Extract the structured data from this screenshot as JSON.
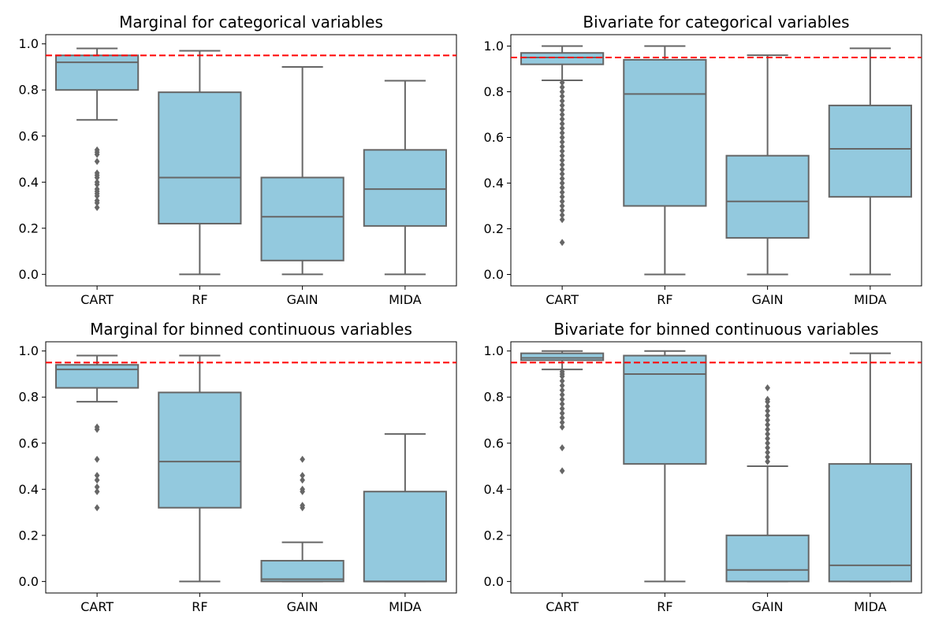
{
  "colors": {
    "box_fill": "#93c9de",
    "box_edge": "#666666",
    "reference_line": "#ff0000",
    "background": "#ffffff"
  },
  "chart_data": [
    {
      "type": "box",
      "title": "Marginal for categorical variables",
      "xlabel": "",
      "ylabel": "",
      "categories": [
        "CART",
        "RF",
        "GAIN",
        "MIDA"
      ],
      "ylim": [
        -0.05,
        1.04
      ],
      "yticks": [
        "0.0",
        "0.2",
        "0.4",
        "0.6",
        "0.8",
        "1.0"
      ],
      "reference_line": 0.95,
      "grid": false,
      "boxes": [
        {
          "q1": 0.8,
          "median": 0.92,
          "q3": 0.95,
          "whisker_low": 0.67,
          "whisker_high": 0.98,
          "outliers": [
            0.29,
            0.31,
            0.32,
            0.34,
            0.35,
            0.36,
            0.37,
            0.39,
            0.4,
            0.42,
            0.43,
            0.44,
            0.49,
            0.52,
            0.53,
            0.54
          ]
        },
        {
          "q1": 0.22,
          "median": 0.42,
          "q3": 0.79,
          "whisker_low": 0.0,
          "whisker_high": 0.97,
          "outliers": []
        },
        {
          "q1": 0.06,
          "median": 0.25,
          "q3": 0.42,
          "whisker_low": 0.0,
          "whisker_high": 0.9,
          "outliers": []
        },
        {
          "q1": 0.21,
          "median": 0.37,
          "q3": 0.54,
          "whisker_low": 0.0,
          "whisker_high": 0.84,
          "outliers": []
        }
      ]
    },
    {
      "type": "box",
      "title": "Bivariate for categorical variables",
      "xlabel": "",
      "ylabel": "",
      "categories": [
        "CART",
        "RF",
        "GAIN",
        "MIDA"
      ],
      "ylim": [
        -0.05,
        1.05
      ],
      "yticks": [
        "0.0",
        "0.2",
        "0.4",
        "0.6",
        "0.8",
        "1.0"
      ],
      "reference_line": 0.95,
      "grid": false,
      "boxes": [
        {
          "q1": 0.92,
          "median": 0.95,
          "q3": 0.97,
          "whisker_low": 0.85,
          "whisker_high": 1.0,
          "outliers": [
            0.14,
            0.24,
            0.26,
            0.28,
            0.3,
            0.32,
            0.34,
            0.36,
            0.38,
            0.4,
            0.42,
            0.44,
            0.46,
            0.48,
            0.5,
            0.52,
            0.54,
            0.56,
            0.58,
            0.6,
            0.62,
            0.64,
            0.66,
            0.68,
            0.7,
            0.72,
            0.74,
            0.76,
            0.78,
            0.8,
            0.82,
            0.84
          ]
        },
        {
          "q1": 0.3,
          "median": 0.79,
          "q3": 0.94,
          "whisker_low": 0.0,
          "whisker_high": 1.0,
          "outliers": []
        },
        {
          "q1": 0.16,
          "median": 0.32,
          "q3": 0.52,
          "whisker_low": 0.0,
          "whisker_high": 0.96,
          "outliers": []
        },
        {
          "q1": 0.34,
          "median": 0.55,
          "q3": 0.74,
          "whisker_low": 0.0,
          "whisker_high": 0.99,
          "outliers": []
        }
      ]
    },
    {
      "type": "box",
      "title": "Marginal for binned continuous variables",
      "xlabel": "",
      "ylabel": "",
      "categories": [
        "CART",
        "RF",
        "GAIN",
        "MIDA"
      ],
      "ylim": [
        -0.05,
        1.04
      ],
      "yticks": [
        "0.0",
        "0.2",
        "0.4",
        "0.6",
        "0.8",
        "1.0"
      ],
      "reference_line": 0.95,
      "grid": false,
      "boxes": [
        {
          "q1": 0.84,
          "median": 0.92,
          "q3": 0.94,
          "whisker_low": 0.78,
          "whisker_high": 0.98,
          "outliers": [
            0.32,
            0.39,
            0.41,
            0.44,
            0.46,
            0.53,
            0.66,
            0.67
          ]
        },
        {
          "q1": 0.32,
          "median": 0.52,
          "q3": 0.82,
          "whisker_low": 0.0,
          "whisker_high": 0.98,
          "outliers": []
        },
        {
          "q1": 0.0,
          "median": 0.01,
          "q3": 0.09,
          "whisker_low": 0.0,
          "whisker_high": 0.17,
          "outliers": [
            0.32,
            0.33,
            0.39,
            0.4,
            0.44,
            0.46,
            0.53
          ]
        },
        {
          "q1": 0.0,
          "median": 0.0,
          "q3": 0.39,
          "whisker_low": 0.0,
          "whisker_high": 0.64,
          "outliers": []
        }
      ]
    },
    {
      "type": "box",
      "title": "Bivariate for binned continuous variables",
      "xlabel": "",
      "ylabel": "",
      "categories": [
        "CART",
        "RF",
        "GAIN",
        "MIDA"
      ],
      "ylim": [
        -0.05,
        1.04
      ],
      "yticks": [
        "0.0",
        "0.2",
        "0.4",
        "0.6",
        "0.8",
        "1.0"
      ],
      "reference_line": 0.95,
      "grid": false,
      "boxes": [
        {
          "q1": 0.96,
          "median": 0.97,
          "q3": 0.99,
          "whisker_low": 0.92,
          "whisker_high": 1.0,
          "outliers": [
            0.48,
            0.58,
            0.67,
            0.69,
            0.71,
            0.73,
            0.75,
            0.77,
            0.79,
            0.81,
            0.83,
            0.85,
            0.87,
            0.89,
            0.9,
            0.91
          ]
        },
        {
          "q1": 0.51,
          "median": 0.9,
          "q3": 0.98,
          "whisker_low": 0.0,
          "whisker_high": 1.0,
          "outliers": []
        },
        {
          "q1": 0.0,
          "median": 0.05,
          "q3": 0.2,
          "whisker_low": 0.0,
          "whisker_high": 0.5,
          "outliers": [
            0.52,
            0.54,
            0.56,
            0.58,
            0.6,
            0.62,
            0.64,
            0.66,
            0.68,
            0.7,
            0.72,
            0.74,
            0.76,
            0.78,
            0.79,
            0.84
          ]
        },
        {
          "q1": 0.0,
          "median": 0.07,
          "q3": 0.51,
          "whisker_low": 0.0,
          "whisker_high": 0.99,
          "outliers": []
        }
      ]
    }
  ]
}
